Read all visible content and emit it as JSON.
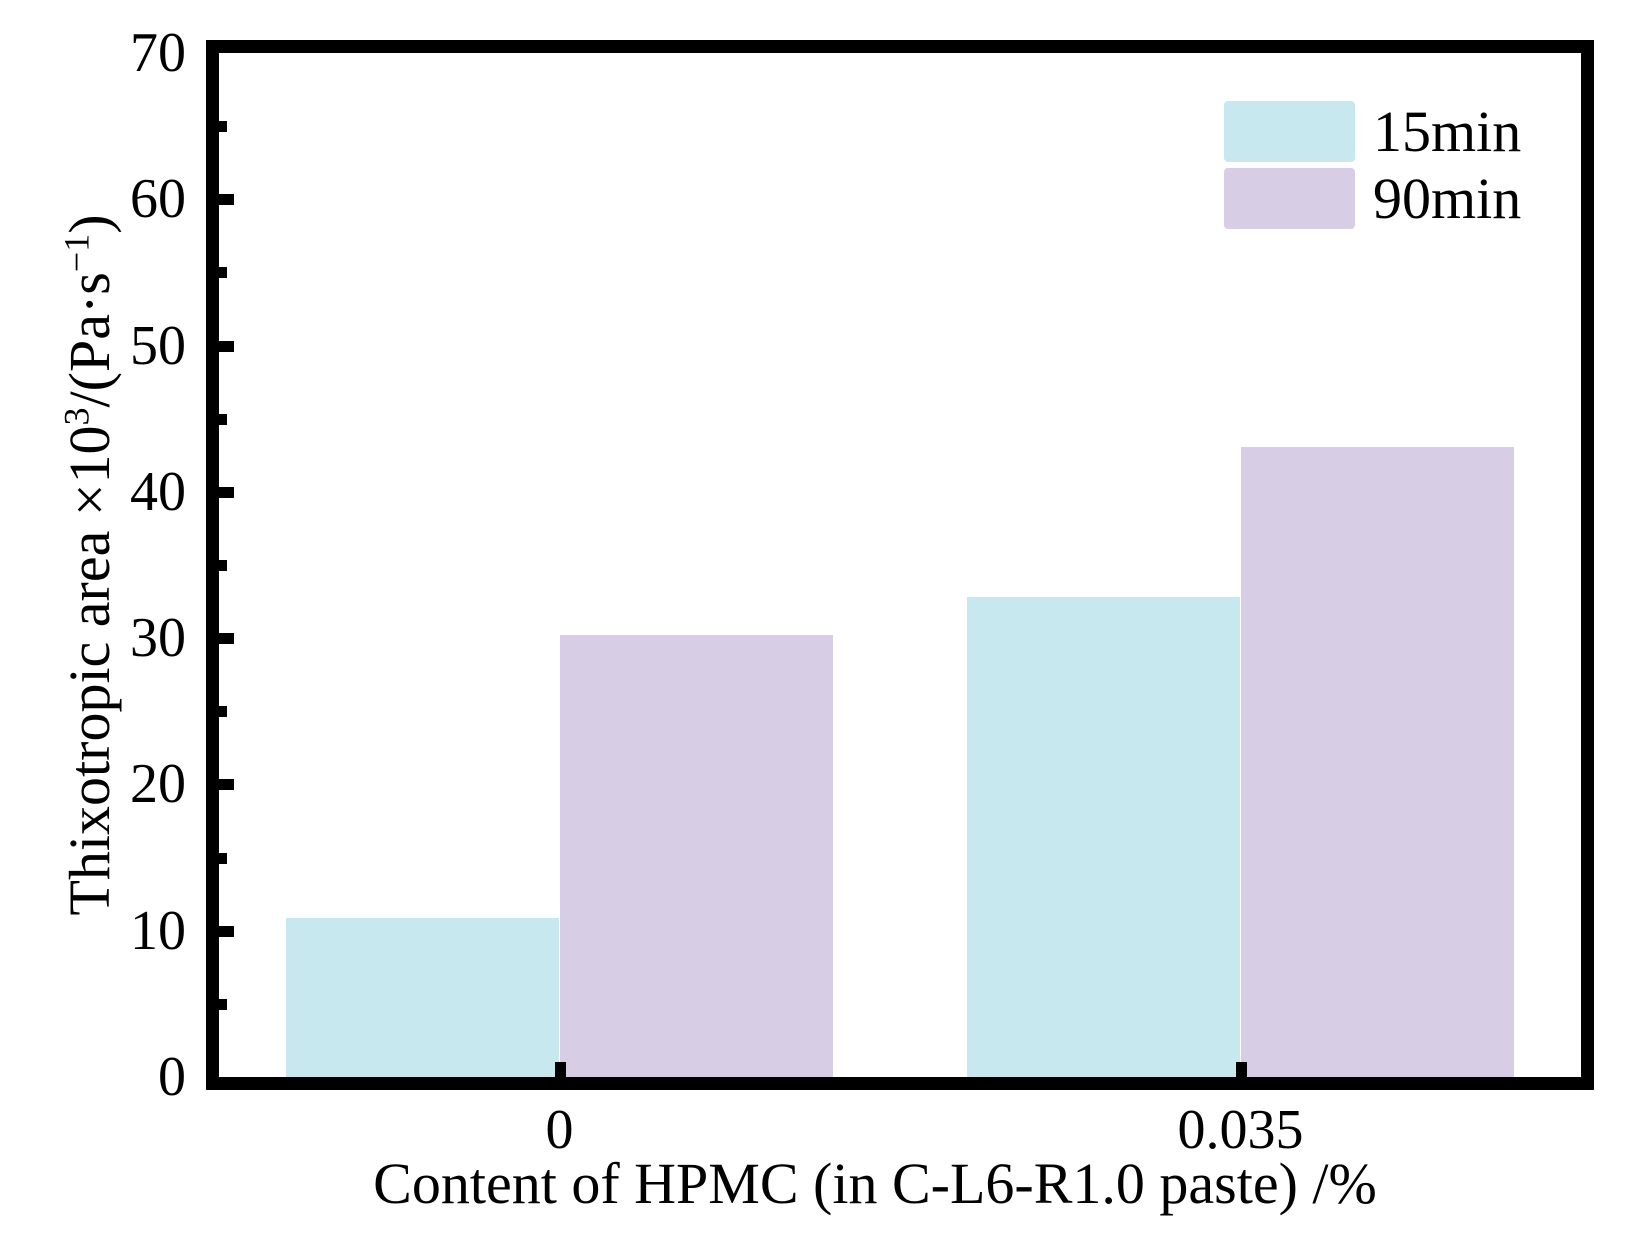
{
  "chart_data": {
    "type": "bar",
    "title": "",
    "categories": [
      "0",
      "0.035"
    ],
    "series": [
      {
        "name": "15min",
        "color": "#c6e8ee",
        "values": [
          10.9,
          32.8
        ]
      },
      {
        "name": "90min",
        "color": "#d7cee6",
        "values": [
          30.2,
          43.1
        ]
      }
    ],
    "xlabel": "Content of HPMC (in C-L6-R1.0 paste) /%",
    "ylabel": "Thixotropic area ×10³/(Pa·s⁻¹)",
    "ylabel_parts": [
      {
        "text": "Thixotropic area ×10"
      },
      {
        "text": "3",
        "sup": true
      },
      {
        "text": "/(Pa·s"
      },
      {
        "text": "−1",
        "sup": true
      },
      {
        "text": ")"
      }
    ],
    "ylim": [
      0,
      70
    ],
    "y_major_ticks": [
      0,
      10,
      20,
      30,
      40,
      50,
      60,
      70
    ],
    "y_minor_ticks": [
      5,
      15,
      25,
      35,
      45,
      55,
      65
    ],
    "bar_width_frac": 0.201,
    "grid": false,
    "axis_color": "#000000",
    "background_color": "#ffffff",
    "legend_position": "top-right"
  }
}
